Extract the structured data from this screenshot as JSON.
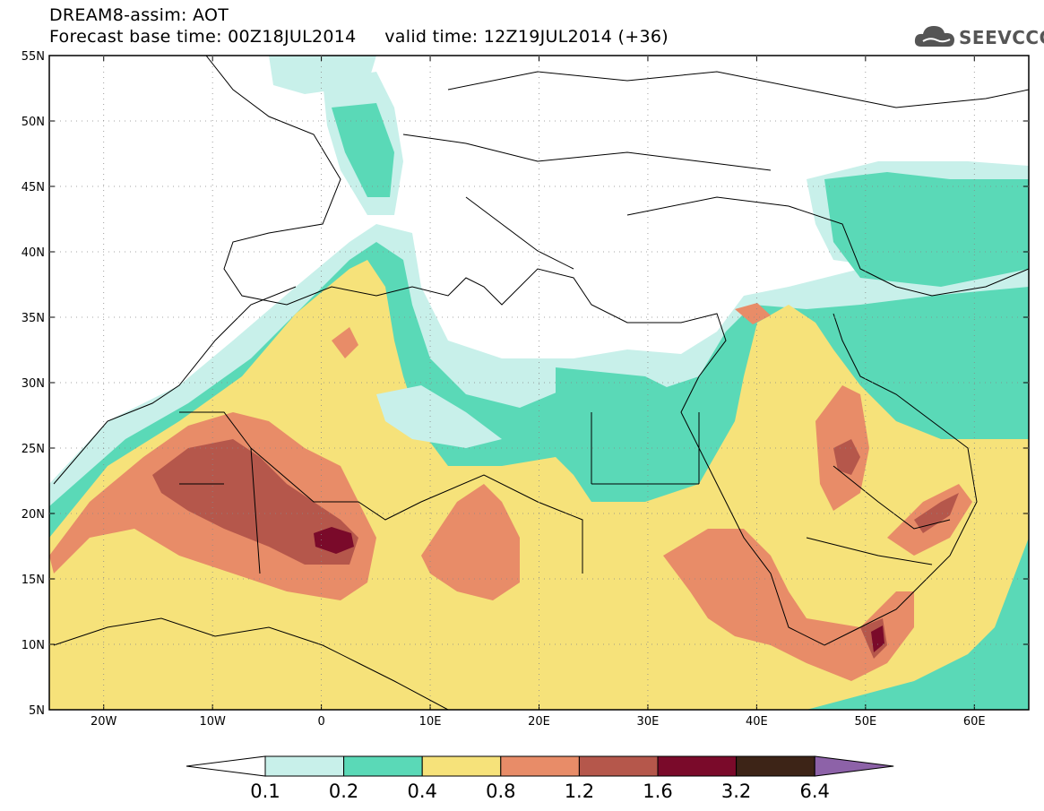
{
  "header": {
    "line1": "DREAM8-assim: AOT",
    "line2": "Forecast base time: 00Z18JUL2014     valid time: 12Z19JUL2014 (+36)"
  },
  "logo": {
    "text": "SEEVCCC",
    "icon": "cloud-logo-icon",
    "color": "#555555"
  },
  "map": {
    "lon_range": [
      -25,
      65
    ],
    "lat_range": [
      5,
      55
    ],
    "lat_ticks": [
      "55N",
      "50N",
      "45N",
      "40N",
      "35N",
      "30N",
      "25N",
      "20N",
      "15N",
      "10N",
      "5N"
    ],
    "lon_ticks": [
      "20W",
      "10W",
      "0",
      "10E",
      "20E",
      "30E",
      "40E",
      "50E",
      "60E"
    ]
  },
  "colorbar": {
    "bins": [
      {
        "color": "#c8f0ea"
      },
      {
        "color": "#5ad9b7"
      },
      {
        "color": "#f6e27a"
      },
      {
        "color": "#e88c68"
      },
      {
        "color": "#b5574b"
      },
      {
        "color": "#7a0a2a"
      },
      {
        "color": "#3d2417"
      }
    ],
    "under_color": "#ffffff",
    "over_color": "#8d62a8",
    "labels": [
      "0.1",
      "0.2",
      "0.4",
      "0.8",
      "1.2",
      "1.6",
      "3.2",
      "6.4"
    ]
  }
}
